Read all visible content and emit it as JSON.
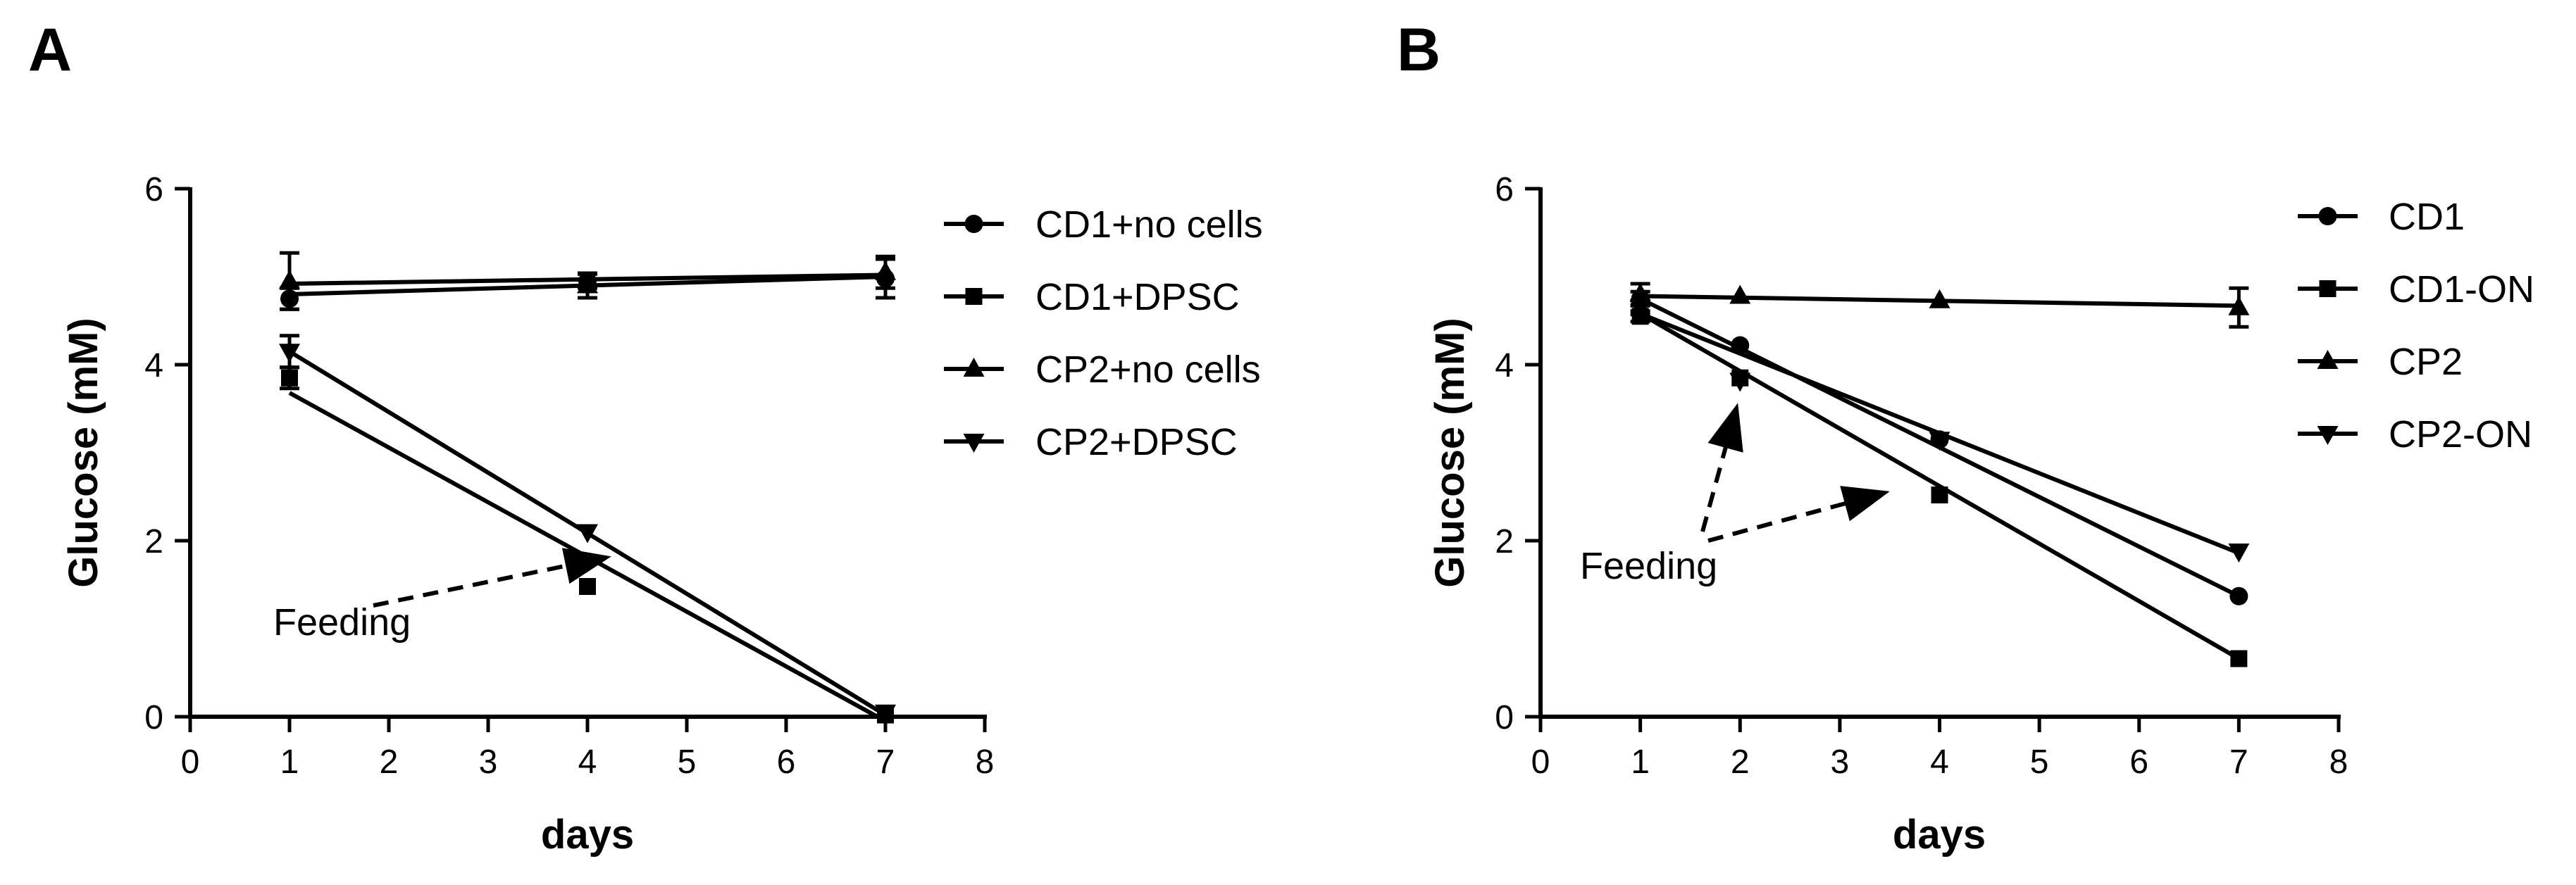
{
  "chart_data": [
    {
      "panel": "A",
      "type": "line",
      "xlabel": "days",
      "ylabel": "Glucose (mM)",
      "xlim": [
        0,
        8
      ],
      "ylim": [
        0,
        6
      ],
      "xticks": [
        "0",
        "1",
        "2",
        "3",
        "4",
        "5",
        "6",
        "7",
        "8"
      ],
      "yticks": [
        "0",
        "2",
        "4",
        "6"
      ],
      "legend_position": "right",
      "annotation": "Feeding",
      "series": [
        {
          "name": "CD1+no cells",
          "marker": "circle",
          "x": [
            1,
            4,
            7
          ],
          "y": [
            4.75,
            4.95,
            4.98
          ],
          "err": [
            0.12,
            0.08,
            0.22
          ],
          "fit": [
            [
              1,
              4.8
            ],
            [
              7,
              5.0
            ]
          ]
        },
        {
          "name": "CD1+DPSC",
          "marker": "square",
          "x": [
            1,
            4,
            7
          ],
          "y": [
            3.85,
            1.48,
            0.02
          ],
          "err": [
            0.12,
            0,
            0
          ],
          "fit": [
            [
              1,
              3.68
            ],
            [
              7,
              -0.05
            ]
          ]
        },
        {
          "name": "CP2+no cells",
          "marker": "triangle-up",
          "x": [
            1,
            4,
            7
          ],
          "y": [
            4.95,
            4.9,
            5.05
          ],
          "err": [
            0.32,
            0.14,
            0.18
          ],
          "fit": [
            [
              1,
              4.92
            ],
            [
              7,
              5.02
            ]
          ]
        },
        {
          "name": "CP2+DPSC",
          "marker": "triangle-down",
          "x": [
            1,
            4,
            7
          ],
          "y": [
            4.15,
            2.1,
            0.05
          ],
          "err": [
            0.18,
            0,
            0
          ],
          "fit": [
            [
              1,
              4.15
            ],
            [
              7,
              0.02
            ]
          ]
        }
      ]
    },
    {
      "panel": "B",
      "type": "line",
      "xlabel": "days",
      "ylabel": "Glucose (mM)",
      "xlim": [
        0,
        8
      ],
      "ylim": [
        0,
        6
      ],
      "xticks": [
        "0",
        "1",
        "2",
        "3",
        "4",
        "5",
        "6",
        "7",
        "8"
      ],
      "yticks": [
        "0",
        "2",
        "4",
        "6"
      ],
      "legend_position": "right",
      "annotation": "Feeding",
      "series": [
        {
          "name": "CD1",
          "marker": "circle",
          "x": [
            1,
            2,
            4,
            7
          ],
          "y": [
            4.75,
            4.22,
            3.15,
            1.37
          ],
          "err": [
            0.08,
            0,
            0,
            0
          ],
          "fit": [
            [
              1,
              4.75
            ],
            [
              7,
              1.37
            ]
          ]
        },
        {
          "name": "CD1-ON",
          "marker": "square",
          "x": [
            1,
            2,
            4,
            7
          ],
          "y": [
            4.55,
            3.85,
            2.52,
            0.66
          ],
          "err": [
            0.06,
            0,
            0,
            0
          ],
          "fit": [
            [
              1,
              4.58
            ],
            [
              7,
              0.66
            ]
          ]
        },
        {
          "name": "CP2",
          "marker": "triangle-up",
          "x": [
            1,
            2,
            4,
            7
          ],
          "y": [
            4.8,
            4.78,
            4.73,
            4.65
          ],
          "err": [
            0.12,
            0,
            0,
            0.22
          ],
          "fit": [
            [
              1,
              4.78
            ],
            [
              7,
              4.67
            ]
          ]
        },
        {
          "name": "CP2-ON",
          "marker": "triangle-down",
          "x": [
            1,
            2,
            4,
            7
          ],
          "y": [
            4.65,
            3.82,
            3.15,
            1.88
          ],
          "err": [
            0.08,
            0,
            0,
            0
          ],
          "fit": [
            [
              1,
              4.58
            ],
            [
              7,
              1.86
            ]
          ]
        }
      ]
    }
  ]
}
